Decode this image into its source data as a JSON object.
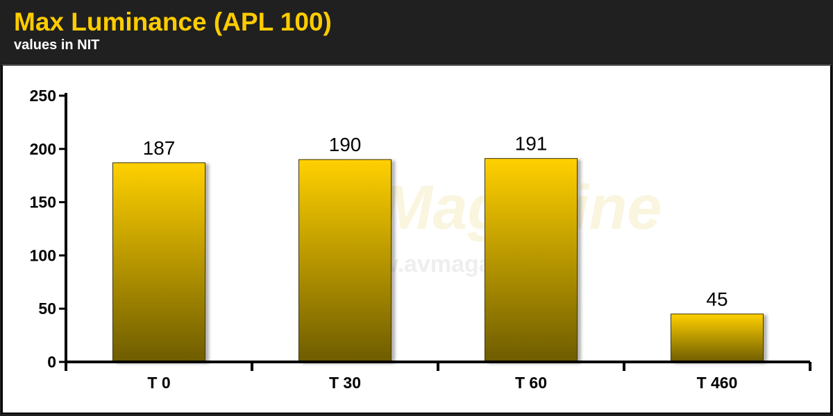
{
  "watermark": {
    "logo": "AVMagazine",
    "site": "© www.avmagazine.it"
  },
  "colors": {
    "header_bg": "#202020",
    "title": "#ffcc00",
    "bar_top": "#ffd000",
    "bar_bottom": "#6e5c00"
  },
  "chart_data": {
    "type": "bar",
    "title": "Max Luminance (APL 100)",
    "subtitle": "values in NIT",
    "categories": [
      "T 0",
      "T 30",
      "T 60",
      "T 460"
    ],
    "values": [
      187,
      190,
      191,
      45
    ],
    "value_labels": [
      "187",
      "190",
      "191",
      "45"
    ],
    "ylim": [
      0,
      250
    ],
    "yticks": [
      0,
      50,
      100,
      150,
      200,
      250
    ],
    "ytick_labels": [
      "0",
      "50",
      "100",
      "150",
      "200",
      "250"
    ],
    "grid": false,
    "legend": "none"
  }
}
